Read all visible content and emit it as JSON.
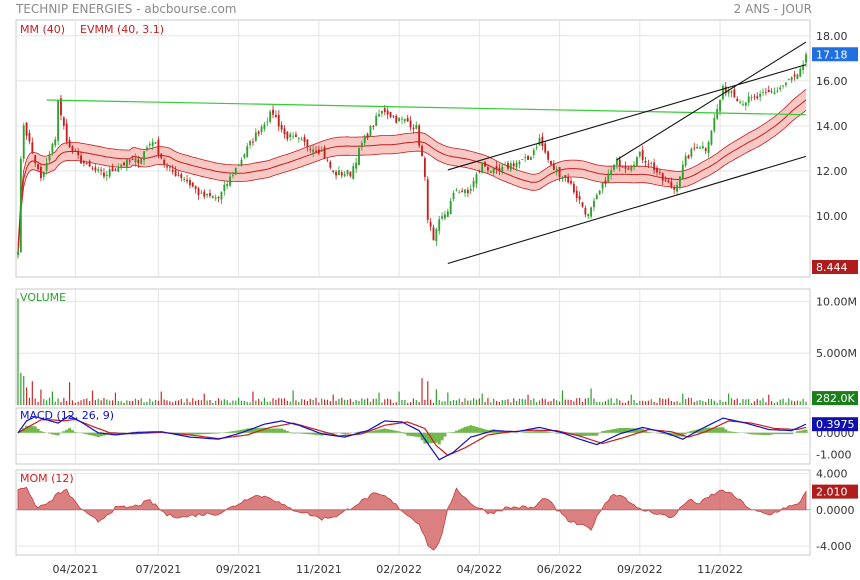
{
  "header": {
    "title": "TECHNIP ENERGIES - abcbourse.com",
    "period": "2 ANS - JOUR"
  },
  "colors": {
    "up": "#2ea02e",
    "down": "#c81e1e",
    "ma": "#c81e1e",
    "band_fill": "#f4b6b0",
    "trend_green": "#33cc33",
    "channel": "#111111",
    "volume": "#cc2a2a",
    "macd_line": "#1010c8",
    "signal_line": "#c81e1e",
    "histogram": "#70b84a",
    "momentum": "#c83c3c",
    "badge_last": "#1f6fe0",
    "badge_low": "#b01c1c",
    "badge_vol": "#1a7f1a",
    "badge_macd": "#1010b0",
    "badge_mom": "#b01c1c"
  },
  "chart_data": [
    {
      "type": "candlestick",
      "panel": "price",
      "legend": [
        "MM (40)",
        "EVMM (40, 3.1)"
      ],
      "y_ticks": [
        10,
        12,
        14,
        16,
        18
      ],
      "y_tick_labels": [
        "10.00",
        "12.00",
        "14.00",
        "16.00",
        "18.00"
      ],
      "ylim": [
        7.3,
        18.7
      ],
      "x_tick_labels": [
        "04/2021",
        "07/2021",
        "09/2021",
        "11/2021",
        "02/2022",
        "04/2022",
        "06/2022",
        "09/2022",
        "11/2022"
      ],
      "x_tick_index": [
        20,
        49,
        77,
        105,
        133,
        161,
        189,
        217,
        245
      ],
      "n_periods": 276,
      "last_value": "17.18",
      "low_value": "8.444",
      "close_keypoints": [
        [
          0,
          8.6
        ],
        [
          1,
          12.4
        ],
        [
          2,
          14.1
        ],
        [
          5,
          12.8
        ],
        [
          8,
          11.6
        ],
        [
          10,
          12.3
        ],
        [
          13,
          13.5
        ],
        [
          14,
          15.2
        ],
        [
          15,
          14.4
        ],
        [
          18,
          13.0
        ],
        [
          24,
          12.2
        ],
        [
          30,
          11.8
        ],
        [
          36,
          12.3
        ],
        [
          42,
          12.5
        ],
        [
          47,
          13.4
        ],
        [
          52,
          12.1
        ],
        [
          58,
          11.7
        ],
        [
          64,
          10.9
        ],
        [
          70,
          10.8
        ],
        [
          75,
          11.9
        ],
        [
          80,
          13.0
        ],
        [
          86,
          14.2
        ],
        [
          89,
          14.6
        ],
        [
          93,
          13.6
        ],
        [
          100,
          13.2
        ],
        [
          106,
          12.9
        ],
        [
          110,
          11.9
        ],
        [
          116,
          11.9
        ],
        [
          120,
          13.2
        ],
        [
          126,
          14.5
        ],
        [
          128,
          14.7
        ],
        [
          132,
          14.3
        ],
        [
          136,
          14.2
        ],
        [
          139,
          13.9
        ],
        [
          141,
          12.6
        ],
        [
          142,
          11.6
        ],
        [
          143,
          10.0
        ],
        [
          145,
          8.8
        ],
        [
          147,
          9.7
        ],
        [
          150,
          10.3
        ],
        [
          153,
          11.2
        ],
        [
          157,
          11.0
        ],
        [
          162,
          12.3
        ],
        [
          167,
          11.9
        ],
        [
          172,
          12.3
        ],
        [
          178,
          12.5
        ],
        [
          182,
          13.4
        ],
        [
          186,
          12.2
        ],
        [
          189,
          11.9
        ],
        [
          192,
          11.6
        ],
        [
          195,
          10.9
        ],
        [
          199,
          10.0
        ],
        [
          202,
          10.8
        ],
        [
          205,
          11.6
        ],
        [
          209,
          12.4
        ],
        [
          213,
          12.2
        ],
        [
          217,
          12.7
        ],
        [
          221,
          12.3
        ],
        [
          225,
          11.6
        ],
        [
          229,
          11.2
        ],
        [
          233,
          12.5
        ],
        [
          237,
          13.2
        ],
        [
          240,
          13.0
        ],
        [
          243,
          14.3
        ],
        [
          246,
          15.6
        ],
        [
          249,
          15.6
        ],
        [
          252,
          15.1
        ],
        [
          257,
          15.2
        ],
        [
          261,
          15.4
        ],
        [
          265,
          15.6
        ],
        [
          268,
          15.9
        ],
        [
          270,
          16.1
        ],
        [
          272,
          16.2
        ],
        [
          274,
          16.6
        ],
        [
          275,
          17.18
        ]
      ],
      "green_trendline": [
        [
          10,
          15.15
        ],
        [
          275,
          14.5
        ]
      ],
      "channel_upper": [
        [
          150,
          12.05
        ],
        [
          275,
          16.72
        ]
      ],
      "channel_lower": [
        [
          150,
          7.9
        ],
        [
          275,
          12.65
        ]
      ],
      "wedge_line": [
        [
          209,
          12.5
        ],
        [
          275,
          17.72
        ]
      ]
    },
    {
      "type": "bar",
      "panel": "volume",
      "legend": "VOLUME",
      "y_ticks": [
        0,
        5000000,
        10000000
      ],
      "y_tick_labels": [
        "",
        "5.000M",
        "10.00M"
      ],
      "ylim": [
        0,
        11200000
      ],
      "last_value": "282.0K",
      "spikes": [
        [
          0,
          10300000
        ],
        [
          1,
          3100000
        ],
        [
          2,
          2800000
        ],
        [
          3,
          1700000
        ],
        [
          5,
          2300000
        ],
        [
          8,
          1500000
        ],
        [
          12,
          1300000
        ],
        [
          18,
          2200000
        ],
        [
          26,
          1400000
        ],
        [
          34,
          1200000
        ],
        [
          50,
          1300000
        ],
        [
          65,
          1100000
        ],
        [
          82,
          1300000
        ],
        [
          96,
          1400000
        ],
        [
          110,
          1000000
        ],
        [
          126,
          1200000
        ],
        [
          133,
          1300000
        ],
        [
          141,
          2600000
        ],
        [
          143,
          2300000
        ],
        [
          146,
          1500000
        ],
        [
          150,
          1200000
        ],
        [
          162,
          1100000
        ],
        [
          178,
          1000000
        ],
        [
          190,
          1400000
        ],
        [
          200,
          1600000
        ],
        [
          214,
          1000000
        ],
        [
          232,
          1100000
        ],
        [
          248,
          1100000
        ],
        [
          262,
          1000000
        ]
      ]
    },
    {
      "type": "line",
      "panel": "macd",
      "legend": "MACD (12, 26, 9)",
      "y_ticks": [
        -1,
        0
      ],
      "y_tick_labels": [
        "-1.000",
        "0.0000"
      ],
      "ylim": [
        -1.45,
        1.15
      ],
      "last_value": "0.3975",
      "macd_keypoints": [
        [
          0,
          0.0
        ],
        [
          3,
          0.55
        ],
        [
          6,
          0.75
        ],
        [
          10,
          0.6
        ],
        [
          14,
          0.45
        ],
        [
          18,
          0.8
        ],
        [
          22,
          0.5
        ],
        [
          28,
          0.0
        ],
        [
          34,
          -0.1
        ],
        [
          42,
          0.02
        ],
        [
          50,
          0.05
        ],
        [
          60,
          -0.2
        ],
        [
          70,
          -0.3
        ],
        [
          78,
          0.0
        ],
        [
          86,
          0.4
        ],
        [
          92,
          0.55
        ],
        [
          98,
          0.35
        ],
        [
          106,
          -0.05
        ],
        [
          114,
          -0.2
        ],
        [
          122,
          0.1
        ],
        [
          128,
          0.55
        ],
        [
          134,
          0.5
        ],
        [
          140,
          0.1
        ],
        [
          143,
          -0.5
        ],
        [
          147,
          -1.25
        ],
        [
          152,
          -0.9
        ],
        [
          158,
          -0.2
        ],
        [
          166,
          0.1
        ],
        [
          174,
          0.05
        ],
        [
          182,
          0.25
        ],
        [
          190,
          0.0
        ],
        [
          196,
          -0.3
        ],
        [
          202,
          -0.55
        ],
        [
          210,
          -0.05
        ],
        [
          218,
          0.25
        ],
        [
          226,
          0.0
        ],
        [
          232,
          -0.3
        ],
        [
          238,
          0.15
        ],
        [
          246,
          0.68
        ],
        [
          254,
          0.45
        ],
        [
          262,
          0.15
        ],
        [
          270,
          0.1
        ],
        [
          275,
          0.3975
        ]
      ],
      "signal_keypoints": [
        [
          0,
          0.0
        ],
        [
          4,
          0.3
        ],
        [
          8,
          0.6
        ],
        [
          12,
          0.6
        ],
        [
          16,
          0.55
        ],
        [
          20,
          0.62
        ],
        [
          26,
          0.3
        ],
        [
          32,
          0.0
        ],
        [
          40,
          -0.05
        ],
        [
          50,
          0.02
        ],
        [
          60,
          -0.1
        ],
        [
          70,
          -0.27
        ],
        [
          80,
          -0.1
        ],
        [
          88,
          0.25
        ],
        [
          96,
          0.45
        ],
        [
          104,
          0.15
        ],
        [
          112,
          -0.15
        ],
        [
          120,
          -0.05
        ],
        [
          128,
          0.35
        ],
        [
          136,
          0.5
        ],
        [
          142,
          0.2
        ],
        [
          146,
          -0.6
        ],
        [
          150,
          -1.05
        ],
        [
          156,
          -0.7
        ],
        [
          164,
          -0.1
        ],
        [
          172,
          0.05
        ],
        [
          180,
          0.12
        ],
        [
          188,
          0.1
        ],
        [
          196,
          -0.15
        ],
        [
          204,
          -0.5
        ],
        [
          212,
          -0.2
        ],
        [
          220,
          0.15
        ],
        [
          228,
          0.05
        ],
        [
          234,
          -0.2
        ],
        [
          240,
          0.05
        ],
        [
          248,
          0.55
        ],
        [
          256,
          0.45
        ],
        [
          264,
          0.2
        ],
        [
          272,
          0.15
        ],
        [
          275,
          0.25
        ]
      ]
    },
    {
      "type": "area",
      "panel": "momentum",
      "legend": "MOM (12)",
      "y_ticks": [
        4,
        0,
        -4
      ],
      "y_tick_labels": [
        "4.000",
        "0.0000",
        "-4.000"
      ],
      "ylim": [
        -5.0,
        4.4
      ],
      "last_value": "2.010",
      "keypoints": [
        [
          0,
          2.3
        ],
        [
          3,
          2.6
        ],
        [
          6,
          0.3
        ],
        [
          10,
          0.6
        ],
        [
          14,
          1.8
        ],
        [
          17,
          2.1
        ],
        [
          20,
          0.8
        ],
        [
          24,
          -0.5
        ],
        [
          28,
          -1.3
        ],
        [
          34,
          0.2
        ],
        [
          40,
          0.3
        ],
        [
          46,
          1.0
        ],
        [
          52,
          -0.6
        ],
        [
          58,
          -0.8
        ],
        [
          64,
          -0.5
        ],
        [
          70,
          -0.4
        ],
        [
          76,
          0.5
        ],
        [
          82,
          1.6
        ],
        [
          88,
          1.4
        ],
        [
          94,
          0.2
        ],
        [
          100,
          -0.3
        ],
        [
          106,
          -1.0
        ],
        [
          112,
          -0.6
        ],
        [
          118,
          0.6
        ],
        [
          124,
          1.7
        ],
        [
          128,
          1.5
        ],
        [
          132,
          0.5
        ],
        [
          136,
          -0.6
        ],
        [
          140,
          -1.5
        ],
        [
          143,
          -3.8
        ],
        [
          145,
          -4.6
        ],
        [
          148,
          -2.8
        ],
        [
          150,
          0.0
        ],
        [
          153,
          2.4
        ],
        [
          156,
          1.3
        ],
        [
          160,
          0.3
        ],
        [
          165,
          -0.4
        ],
        [
          170,
          0.2
        ],
        [
          175,
          0.3
        ],
        [
          180,
          0.2
        ],
        [
          184,
          1.4
        ],
        [
          188,
          0.0
        ],
        [
          192,
          -1.2
        ],
        [
          197,
          -1.8
        ],
        [
          200,
          -2.1
        ],
        [
          204,
          0.4
        ],
        [
          208,
          1.8
        ],
        [
          212,
          1.4
        ],
        [
          216,
          0.1
        ],
        [
          222,
          -0.3
        ],
        [
          228,
          -0.9
        ],
        [
          234,
          1.1
        ],
        [
          238,
          0.7
        ],
        [
          242,
          1.6
        ],
        [
          246,
          2.2
        ],
        [
          250,
          1.5
        ],
        [
          256,
          0.0
        ],
        [
          262,
          -0.6
        ],
        [
          268,
          0.3
        ],
        [
          272,
          0.5
        ],
        [
          275,
          2.01
        ]
      ]
    }
  ]
}
